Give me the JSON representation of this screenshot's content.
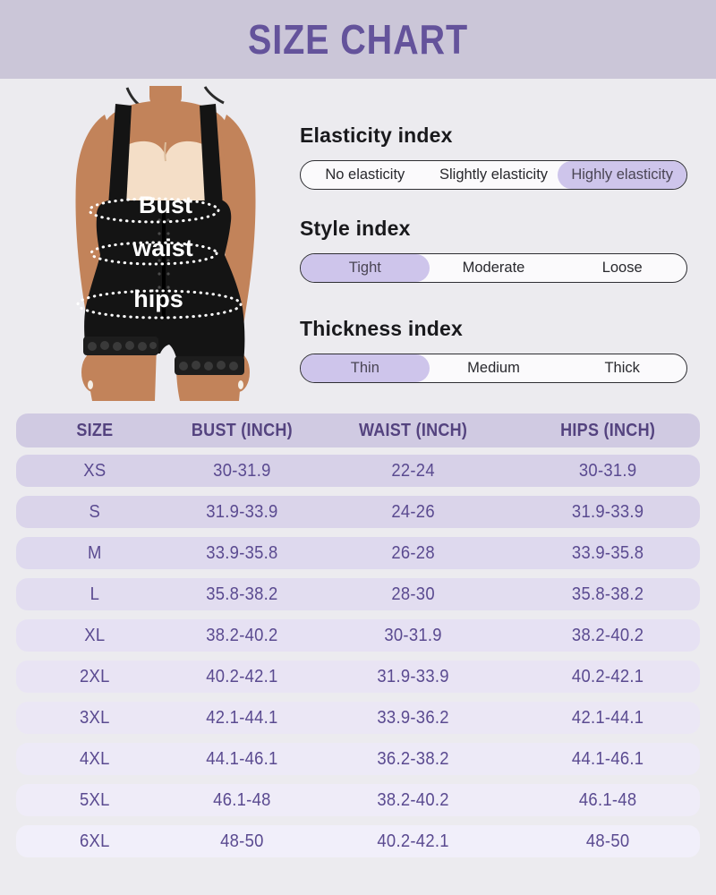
{
  "header": {
    "title": "SIZE CHART"
  },
  "figure_labels": {
    "bust": "Bust",
    "waist": "waist",
    "hips": "hips"
  },
  "indexes": [
    {
      "title": "Elasticity index",
      "options": [
        "No elasticity",
        "Slightly elasticity",
        "Highly elasticity"
      ],
      "selected": 2
    },
    {
      "title": "Style index",
      "options": [
        "Tight",
        "Moderate",
        "Loose"
      ],
      "selected": 0
    },
    {
      "title": "Thickness index",
      "options": [
        "Thin",
        "Medium",
        "Thick"
      ],
      "selected": 0
    }
  ],
  "size_table": {
    "columns": [
      "SIZE",
      "BUST (INCH)",
      "WAIST (INCH)",
      "HIPS (INCH)"
    ],
    "rows": [
      [
        "XS",
        "30-31.9",
        "22-24",
        "30-31.9"
      ],
      [
        "S",
        "31.9-33.9",
        "24-26",
        "31.9-33.9"
      ],
      [
        "M",
        "33.9-35.8",
        "26-28",
        "33.9-35.8"
      ],
      [
        "L",
        "35.8-38.2",
        "28-30",
        "35.8-38.2"
      ],
      [
        "XL",
        "38.2-40.2",
        "30-31.9",
        "38.2-40.2"
      ],
      [
        "2XL",
        "40.2-42.1",
        "31.9-33.9",
        "40.2-42.1"
      ],
      [
        "3XL",
        "42.1-44.1",
        "33.9-36.2",
        "42.1-44.1"
      ],
      [
        "4XL",
        "44.1-46.1",
        "36.2-38.2",
        "44.1-46.1"
      ],
      [
        "5XL",
        "46.1-48",
        "38.2-40.2",
        "46.1-48"
      ],
      [
        "6XL",
        "48-50",
        "40.2-42.1",
        "48-50"
      ]
    ]
  },
  "colors": {
    "accent_purple": "#64539b",
    "banner_bg": "#cbc6d8",
    "highlight_pill": "#cec5eb",
    "table_header_bg": "#d0cae2",
    "table_text": "#5a4a90",
    "page_bg": "#ecebef"
  }
}
